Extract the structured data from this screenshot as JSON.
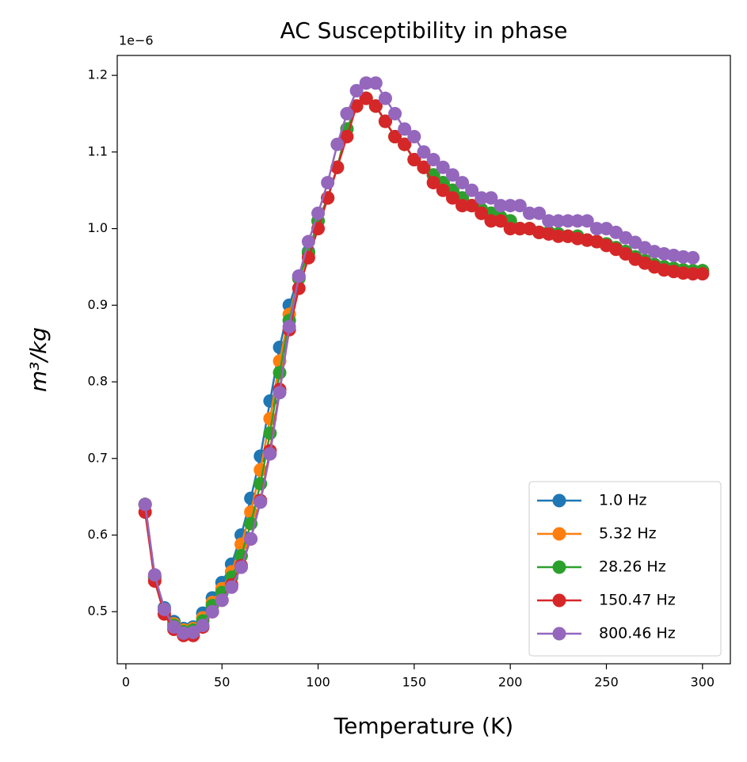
{
  "chart_data": {
    "type": "line",
    "title": "AC Susceptibility in phase",
    "x_label": "Temperature (K)",
    "y_label": "m³/kg",
    "offset_label": "1e−6",
    "x": [
      10,
      15,
      20,
      25,
      30,
      35,
      40,
      45,
      50,
      55,
      60,
      65,
      70,
      75,
      80,
      85,
      90,
      95,
      100,
      105,
      110,
      115,
      120,
      125,
      130,
      135,
      140,
      145,
      150,
      155,
      160,
      165,
      170,
      175,
      180,
      185,
      190,
      195,
      200,
      205,
      210,
      215,
      220,
      225,
      230,
      235,
      240,
      245,
      250,
      255,
      260,
      265,
      270,
      275,
      280,
      285,
      290,
      295,
      300
    ],
    "series": [
      {
        "name": "1.0 Hz",
        "color": "#1f77b4",
        "values": [
          0.64,
          0.545,
          0.505,
          0.487,
          0.478,
          0.48,
          0.498,
          0.518,
          0.538,
          0.562,
          0.6,
          0.648,
          0.703,
          0.775,
          0.845,
          0.9,
          0.938,
          0.97,
          1.01,
          1.04,
          1.08,
          1.13,
          1.16,
          1.17,
          1.16,
          1.14,
          1.12,
          1.11,
          1.09,
          1.08,
          1.07,
          1.06,
          1.05,
          1.04,
          1.03,
          1.02,
          1.02,
          1.01,
          1.01,
          1.0,
          1.0,
          0.995,
          0.995,
          0.993,
          0.99,
          0.99,
          0.985,
          0.983,
          0.98,
          0.975,
          0.97,
          0.963,
          0.958,
          0.953,
          0.95,
          0.948,
          0.946,
          0.945,
          0.945
        ]
      },
      {
        "name": "5.32 Hz",
        "color": "#ff7f0e",
        "values": [
          0.64,
          0.545,
          0.503,
          0.484,
          0.476,
          0.478,
          0.492,
          0.512,
          0.53,
          0.552,
          0.588,
          0.63,
          0.685,
          0.752,
          0.827,
          0.888,
          0.935,
          0.968,
          1.01,
          1.04,
          1.08,
          1.13,
          1.16,
          1.17,
          1.16,
          1.14,
          1.12,
          1.11,
          1.09,
          1.08,
          1.07,
          1.06,
          1.05,
          1.04,
          1.03,
          1.02,
          1.02,
          1.01,
          1.01,
          1.0,
          1.0,
          0.995,
          0.995,
          0.993,
          0.99,
          0.99,
          0.985,
          0.983,
          0.98,
          0.975,
          0.97,
          0.963,
          0.958,
          0.953,
          0.95,
          0.948,
          0.946,
          0.945,
          0.945
        ]
      },
      {
        "name": "28.26 Hz",
        "color": "#2ca02c",
        "values": [
          0.64,
          0.545,
          0.502,
          0.482,
          0.474,
          0.476,
          0.488,
          0.508,
          0.525,
          0.545,
          0.573,
          0.615,
          0.667,
          0.733,
          0.812,
          0.88,
          0.935,
          0.968,
          1.01,
          1.04,
          1.08,
          1.13,
          1.16,
          1.17,
          1.16,
          1.14,
          1.12,
          1.11,
          1.09,
          1.08,
          1.07,
          1.06,
          1.05,
          1.04,
          1.03,
          1.025,
          1.02,
          1.015,
          1.01,
          1.0,
          1.0,
          0.995,
          0.995,
          0.993,
          0.99,
          0.99,
          0.985,
          0.983,
          0.98,
          0.975,
          0.97,
          0.963,
          0.958,
          0.953,
          0.95,
          0.948,
          0.946,
          0.945,
          0.945
        ]
      },
      {
        "name": "150.47 Hz",
        "color": "#d62728",
        "values": [
          0.63,
          0.54,
          0.497,
          0.477,
          0.469,
          0.469,
          0.48,
          0.5,
          0.515,
          0.535,
          0.56,
          0.595,
          0.645,
          0.71,
          0.79,
          0.868,
          0.922,
          0.962,
          1.0,
          1.04,
          1.08,
          1.12,
          1.16,
          1.17,
          1.16,
          1.14,
          1.12,
          1.11,
          1.09,
          1.08,
          1.06,
          1.05,
          1.04,
          1.03,
          1.03,
          1.02,
          1.01,
          1.01,
          1.0,
          1.0,
          1.0,
          0.995,
          0.993,
          0.99,
          0.99,
          0.987,
          0.985,
          0.983,
          0.978,
          0.973,
          0.967,
          0.96,
          0.955,
          0.95,
          0.946,
          0.944,
          0.942,
          0.941,
          0.941
        ]
      },
      {
        "name": "800.46 Hz",
        "color": "#9467bd",
        "values": [
          0.64,
          0.548,
          0.503,
          0.48,
          0.472,
          0.473,
          0.482,
          0.5,
          0.515,
          0.532,
          0.558,
          0.595,
          0.643,
          0.706,
          0.786,
          0.872,
          0.938,
          0.983,
          1.02,
          1.06,
          1.11,
          1.15,
          1.18,
          1.19,
          1.19,
          1.17,
          1.15,
          1.13,
          1.12,
          1.1,
          1.09,
          1.08,
          1.07,
          1.06,
          1.05,
          1.04,
          1.04,
          1.03,
          1.03,
          1.03,
          1.02,
          1.02,
          1.01,
          1.01,
          1.01,
          1.01,
          1.01,
          1.0,
          1.0,
          0.995,
          0.988,
          0.982,
          0.975,
          0.97,
          0.967,
          0.965,
          0.963,
          0.962,
          null
        ]
      }
    ],
    "xlim": [
      -4.5,
      314.5
    ],
    "ylim": [
      0.432,
      1.226
    ],
    "xticks": [
      0,
      50,
      100,
      150,
      200,
      250,
      300
    ],
    "yticks": [
      0.5,
      0.6,
      0.7,
      0.8,
      0.9,
      {
        "value": 1,
        "label": "1.0"
      },
      1.1,
      1.2
    ],
    "legend": "lower right",
    "markers": true,
    "grid": false
  }
}
